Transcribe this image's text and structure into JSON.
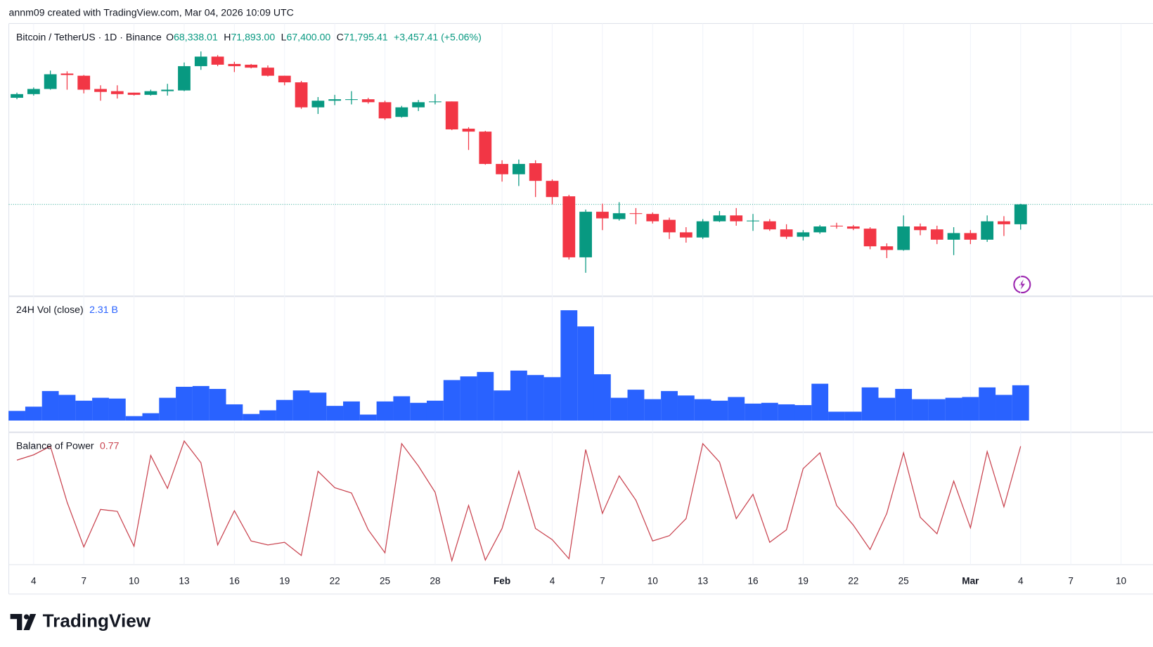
{
  "header": "annm09 created with TradingView.com, Mar 04, 2026 10:09 UTC",
  "footer": {
    "brand": "TradingView"
  },
  "chart_data": [
    {
      "type": "candlestick",
      "title": "Bitcoin / TetherUS · 1D · Binance",
      "legend_keys": [
        "O",
        "H",
        "L",
        "C"
      ],
      "legend_labels": [
        "68,338.01",
        "71,893.00",
        "67,400.00",
        "71,795.41"
      ],
      "change_label": "+3,457.41 (+5.06%)",
      "up_color": "#089981",
      "down_color": "#f23645",
      "last_price_line": true,
      "grid": true,
      "x": [
        "2026-01-03",
        "2026-01-04",
        "2026-01-05",
        "2026-01-06",
        "2026-01-07",
        "2026-01-08",
        "2026-01-09",
        "2026-01-10",
        "2026-01-11",
        "2026-01-12",
        "2026-01-13",
        "2026-01-14",
        "2026-01-15",
        "2026-01-16",
        "2026-01-17",
        "2026-01-18",
        "2026-01-19",
        "2026-01-20",
        "2026-01-21",
        "2026-01-22",
        "2026-01-23",
        "2026-01-24",
        "2026-01-25",
        "2026-01-26",
        "2026-01-27",
        "2026-01-28",
        "2026-01-29",
        "2026-01-30",
        "2026-01-31",
        "2026-02-01",
        "2026-02-02",
        "2026-02-03",
        "2026-02-04",
        "2026-02-05",
        "2026-02-06",
        "2026-02-07",
        "2026-02-08",
        "2026-02-09",
        "2026-02-10",
        "2026-02-11",
        "2026-02-12",
        "2026-02-13",
        "2026-02-14",
        "2026-02-15",
        "2026-02-16",
        "2026-02-17",
        "2026-02-18",
        "2026-02-19",
        "2026-02-20",
        "2026-02-21",
        "2026-02-22",
        "2026-02-23",
        "2026-02-24",
        "2026-02-25",
        "2026-02-26",
        "2026-02-27",
        "2026-02-28",
        "2026-03-01",
        "2026-03-02",
        "2026-03-03",
        "2026-03-04"
      ],
      "open": [
        90355,
        90995,
        91891,
        94579,
        94195,
        91891,
        91507,
        91251,
        90867,
        91507,
        91635,
        95859,
        97523,
        96243,
        96115,
        95603,
        94195,
        93043,
        88691,
        89843,
        89971,
        90099,
        89587,
        87027,
        88691,
        89587,
        89715,
        84979,
        84467,
        78835,
        77043,
        78963,
        75891,
        73203,
        62579,
        70515,
        69235,
        70259,
        70131,
        69107,
        66931,
        66035,
        68851,
        69875,
        68851,
        68851,
        67443,
        66163,
        66931,
        68083,
        67955,
        67571,
        64499,
        63859,
        67955,
        67443,
        65651,
        66803,
        65651,
        68851,
        68338.01
      ],
      "high": [
        91251,
        92147,
        95091,
        94963,
        94323,
        92531,
        92531,
        91251,
        91763,
        92787,
        96499,
        98419,
        97779,
        96627,
        96243,
        95987,
        94195,
        93299,
        90483,
        90867,
        91507,
        90355,
        89843,
        88947,
        89971,
        90995,
        89715,
        85235,
        84595,
        79475,
        79603,
        79475,
        76147,
        73459,
        70899,
        71923,
        72179,
        71155,
        70387,
        69491,
        67827,
        69235,
        70643,
        71155,
        70131,
        69235,
        68339,
        67315,
        68211,
        68595,
        68211,
        67827,
        65011,
        69875,
        68467,
        68083,
        67827,
        67315,
        69875,
        69747,
        71893
      ],
      "low": [
        90099,
        90739,
        91763,
        91763,
        91123,
        89843,
        90227,
        90739,
        90739,
        90739,
        91507,
        95219,
        95859,
        94835,
        95475,
        94067,
        92531,
        88435,
        87539,
        89075,
        89203,
        89331,
        86515,
        86899,
        88051,
        89203,
        84723,
        81267,
        78707,
        75763,
        74995,
        73075,
        71795,
        62195,
        59891,
        67315,
        68979,
        68339,
        68467,
        65779,
        65139,
        65779,
        68723,
        68083,
        67187,
        67187,
        65779,
        65523,
        66675,
        67571,
        67315,
        63987,
        62451,
        63731,
        66419,
        64883,
        62963,
        64883,
        65267,
        66291,
        67400
      ],
      "close": [
        90995,
        91891,
        94451,
        94323,
        91763,
        91379,
        90995,
        90867,
        91507,
        91763,
        95859,
        97523,
        96115,
        95859,
        95603,
        94195,
        93043,
        88691,
        89843,
        90099,
        90099,
        89587,
        86771,
        88691,
        89587,
        89715,
        84851,
        84467,
        78835,
        77043,
        78835,
        75891,
        73075,
        62579,
        70515,
        69363,
        70259,
        70131,
        68851,
        66931,
        66035,
        68851,
        69875,
        68851,
        68979,
        67443,
        66163,
        66931,
        67955,
        67955,
        67571,
        64499,
        63859,
        67955,
        67315,
        65651,
        66803,
        65651,
        68851,
        68339,
        71795.41
      ],
      "ylim": [
        55795,
        103283
      ],
      "xlim": [
        "2026-01-02",
        "2026-03-11"
      ],
      "xticks": [
        {
          "value": "2026-01-04",
          "label": "4"
        },
        {
          "value": "2026-01-07",
          "label": "7"
        },
        {
          "value": "2026-01-10",
          "label": "10"
        },
        {
          "value": "2026-01-13",
          "label": "13"
        },
        {
          "value": "2026-01-16",
          "label": "16"
        },
        {
          "value": "2026-01-19",
          "label": "19"
        },
        {
          "value": "2026-01-22",
          "label": "22"
        },
        {
          "value": "2026-01-25",
          "label": "25"
        },
        {
          "value": "2026-01-28",
          "label": "28"
        },
        {
          "value": "2026-02-01",
          "label": "Feb"
        },
        {
          "value": "2026-02-04",
          "label": "4"
        },
        {
          "value": "2026-02-07",
          "label": "7"
        },
        {
          "value": "2026-02-10",
          "label": "10"
        },
        {
          "value": "2026-02-13",
          "label": "13"
        },
        {
          "value": "2026-02-16",
          "label": "16"
        },
        {
          "value": "2026-02-19",
          "label": "19"
        },
        {
          "value": "2026-02-22",
          "label": "22"
        },
        {
          "value": "2026-02-25",
          "label": "25"
        },
        {
          "value": "2026-03-01",
          "label": "Mar"
        },
        {
          "value": "2026-03-04",
          "label": "4"
        },
        {
          "value": "2026-03-07",
          "label": "7"
        },
        {
          "value": "2026-03-10",
          "label": "10"
        }
      ]
    },
    {
      "type": "bar",
      "title": "24H Vol (close)",
      "value_label": "2.31 B",
      "color": "#2962ff",
      "values": [
        0.63,
        0.91,
        1.93,
        1.68,
        1.3,
        1.49,
        1.44,
        0.29,
        0.48,
        1.49,
        2.21,
        2.26,
        2.07,
        1.06,
        0.43,
        0.67,
        1.35,
        1.97,
        1.83,
        0.96,
        1.25,
        0.39,
        1.25,
        1.59,
        1.16,
        1.3,
        2.65,
        2.89,
        3.18,
        1.97,
        3.27,
        2.98,
        2.84,
        7.22,
        6.16,
        3.03,
        1.49,
        2.02,
        1.4,
        1.93,
        1.64,
        1.4,
        1.3,
        1.54,
        1.11,
        1.16,
        1.06,
        1.01,
        2.41,
        0.58,
        0.58,
        2.17,
        1.49,
        2.07,
        1.4,
        1.4,
        1.49,
        1.54,
        2.17,
        1.68,
        2.31
      ],
      "ylim": [
        0,
        7.7
      ]
    },
    {
      "type": "line",
      "title": "Balance of Power",
      "value_label": "0.77",
      "color": "#c9434f",
      "values": [
        0.56,
        0.64,
        0.77,
        -0.08,
        -0.76,
        -0.19,
        -0.22,
        -0.75,
        0.63,
        0.13,
        0.85,
        0.52,
        -0.73,
        -0.21,
        -0.67,
        -0.73,
        -0.69,
        -0.89,
        0.39,
        0.14,
        0.06,
        -0.5,
        -0.85,
        0.81,
        0.47,
        0.07,
        -0.97,
        -0.13,
        -0.96,
        -0.48,
        0.39,
        -0.48,
        -0.65,
        -0.94,
        0.72,
        -0.25,
        0.32,
        -0.05,
        -0.67,
        -0.59,
        -0.33,
        0.81,
        0.53,
        -0.33,
        0.04,
        -0.69,
        -0.5,
        0.43,
        0.67,
        -0.13,
        -0.43,
        -0.8,
        -0.25,
        0.67,
        -0.31,
        -0.56,
        0.24,
        -0.47,
        0.69,
        -0.15,
        0.77
      ],
      "ylim": [
        -1.03,
        0.96
      ]
    }
  ]
}
